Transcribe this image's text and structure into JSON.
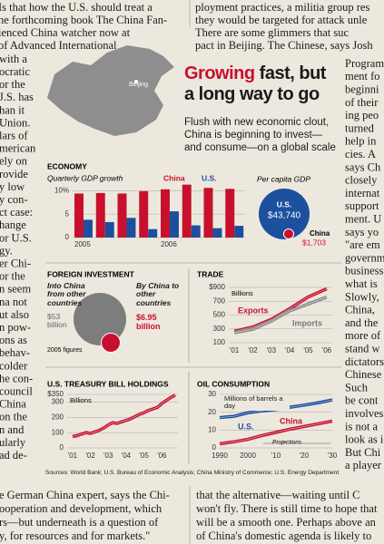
{
  "article": {
    "top_left": [
      "Is that how the U.S. should treat a",
      "he forthcoming book The China Fan-",
      "ienced China watcher now at",
      "of Advanced International"
    ],
    "top_right": [
      "ployment practices, a militia group res",
      "they would be targeted for attack unle",
      "There are some glimmers that suc",
      "pact in Beijing. The Chinese, says Josh"
    ],
    "left_column": [
      "with a",
      "ocratic",
      "or the",
      "J.S. has",
      "han it",
      "Union.",
      "lars of",
      "merican",
      "ely on",
      "rovide",
      "y low",
      "y con-",
      "ct case:",
      "hange",
      "or U.S.",
      "gy.",
      "er Chi-",
      "or the",
      "n seem",
      "na not",
      "ut also",
      "n pow-",
      "ons as",
      "behav-",
      "colder",
      "he con-",
      "council",
      "China",
      "on the",
      "n and",
      "ularly",
      "ad de-"
    ],
    "right_column": [
      "Program",
      "ment fo",
      "beginni",
      "of their",
      "ing peo",
      "turned",
      "help in",
      "cies. A",
      "says Ch",
      "closely",
      "internat",
      "support",
      "ment. U",
      "says yo",
      "\"are em",
      "governm",
      "business",
      "what is",
      "Slowly,",
      "China,",
      "and the",
      "more of",
      "stand w",
      "dictators",
      "Chinese",
      "Such",
      "be cont",
      "involves",
      "is not a",
      "look as i",
      "But Chi",
      "a player"
    ],
    "bottom_left": [
      "e German China expert, says the Chi-",
      "ooperation and development, which",
      "rs—but underneath is a question of",
      "y, for resources and for markets.\""
    ],
    "bottom_right": [
      "that the alternative—waiting until C",
      "won't fly. There is still time to hope that",
      "will be a smooth one. Perhaps above an",
      "of China's domestic agenda is likely to"
    ]
  },
  "graphic": {
    "title": [
      "Growing",
      "fast, but",
      "a long way to go"
    ],
    "subtitle": [
      "Flush with new economic clout,",
      "China is beginning to invest—",
      "and consume—on a global scale"
    ],
    "map_label": "Beijing",
    "source": "Sources: World Bank; U.S. Bureau of Economic Analysis; China Ministry of Commerce; U.S. Energy Department"
  },
  "chart_data": [
    {
      "type": "bar",
      "title": "ECONOMY",
      "subtitle": "Quarterly GDP growth",
      "categories": [
        "2005",
        null,
        null,
        null,
        "2006",
        null,
        null,
        null
      ],
      "series": [
        {
          "name": "China",
          "color": "#c8102e",
          "values": [
            9.4,
            9.5,
            9.4,
            9.9,
            10.3,
            11.3,
            10.6,
            10.4
          ]
        },
        {
          "name": "U.S.",
          "color": "#1d4f9f",
          "values": [
            3.8,
            3.3,
            4.2,
            1.8,
            5.6,
            2.6,
            2.0,
            2.5
          ]
        }
      ],
      "ylim": [
        0,
        12
      ],
      "yticks": [
        0,
        5,
        {
          "value": 10,
          "label": "10%"
        }
      ]
    },
    {
      "type": "bubble",
      "title": "Per capita GDP",
      "categories": [
        "U.S.",
        "China"
      ],
      "values": [
        43740,
        1703
      ],
      "value_labels": [
        "$43,740",
        "$1,703"
      ],
      "colors": [
        "#1d4f9f",
        "#c8102e"
      ]
    },
    {
      "type": "bubble",
      "title": "FOREIGN INVESTMENT",
      "categories": [
        "Into China from other countries",
        "By China to other countries"
      ],
      "values": [
        53,
        6.95
      ],
      "value_labels": [
        "$53 billion",
        "$6.95 billion"
      ],
      "colors": [
        "#7d7d7d",
        "#c8102e"
      ],
      "note": "2005 figures"
    },
    {
      "type": "line",
      "title": "TRADE",
      "unit_label": "Billions",
      "x": [
        2001,
        2002,
        2003,
        2004,
        2005,
        2006
      ],
      "xlim": [
        2000.7,
        2006.3
      ],
      "xticks": [
        {
          "value": 2001,
          "label": "'01"
        },
        {
          "value": 2002,
          "label": "'02"
        },
        {
          "value": 2003,
          "label": "'03"
        },
        {
          "value": 2004,
          "label": "'04"
        },
        {
          "value": 2005,
          "label": "'05"
        },
        {
          "value": 2006,
          "label": "'06"
        }
      ],
      "ylim": [
        100,
        900
      ],
      "yticks": [
        100,
        300,
        500,
        700,
        {
          "value": 900,
          "label": "$900"
        }
      ],
      "series": [
        {
          "name": "Exports",
          "color": "#c8102e",
          "values": [
            266,
            326,
            438,
            593,
            762,
            880
          ]
        },
        {
          "name": "Imports",
          "color": "#8a8a8a",
          "values": [
            244,
            295,
            413,
            561,
            660,
            760
          ]
        }
      ]
    },
    {
      "type": "line",
      "title": "U.S. TREASURY BILL HOLDINGS",
      "unit_label": "Billions",
      "x": [
        2001,
        2001.25,
        2001.5,
        2001.75,
        2002,
        2002.25,
        2002.5,
        2002.75,
        2003,
        2003.25,
        2003.5,
        2003.75,
        2004,
        2004.25,
        2004.5,
        2004.75,
        2005,
        2005.25,
        2005.5,
        2005.75,
        2006,
        2006.25,
        2006.5,
        2006.75
      ],
      "xlim": [
        2000.7,
        2006.9
      ],
      "xticks": [
        {
          "value": 2001,
          "label": "'01"
        },
        {
          "value": 2002,
          "label": "'02"
        },
        {
          "value": 2003,
          "label": "'03"
        },
        {
          "value": 2004,
          "label": "'04"
        },
        {
          "value": 2005,
          "label": "'05"
        },
        {
          "value": 2006,
          "label": "'06"
        }
      ],
      "ylim": [
        0,
        350
      ],
      "yticks": [
        0,
        100,
        200,
        300,
        {
          "value": 350,
          "label": "$350"
        }
      ],
      "series": [
        {
          "name": "Holdings",
          "color": "#c8102e",
          "values": [
            75,
            80,
            90,
            100,
            95,
            105,
            115,
            130,
            150,
            165,
            160,
            170,
            180,
            190,
            205,
            220,
            230,
            245,
            255,
            265,
            290,
            310,
            330,
            345
          ]
        }
      ]
    },
    {
      "type": "line",
      "title": "OIL CONSUMPTION",
      "unit_label": "Millions of barrels a day",
      "annotation": "Projections",
      "x": [
        1990,
        1995,
        2000,
        2005,
        2010,
        2015,
        2020,
        2025,
        2030
      ],
      "xlim": [
        1990,
        2030
      ],
      "xticks": [
        1990,
        2000,
        {
          "value": 2010,
          "label": "'10"
        },
        {
          "value": 2020,
          "label": "'20"
        },
        {
          "value": 2030,
          "label": "'30"
        }
      ],
      "ylim": [
        0,
        30
      ],
      "yticks": [
        0,
        10,
        20,
        30
      ],
      "series": [
        {
          "name": "U.S.",
          "color": "#1d4f9f",
          "values": [
            17,
            17.7,
            19.7,
            20.8,
            21.5,
            22.8,
            24,
            25.3,
            26.9
          ]
        },
        {
          "name": "China",
          "color": "#c8102e",
          "values": [
            2.3,
            3.4,
            4.8,
            6.9,
            8.7,
            10.5,
            12,
            13.5,
            15
          ]
        }
      ]
    }
  ]
}
